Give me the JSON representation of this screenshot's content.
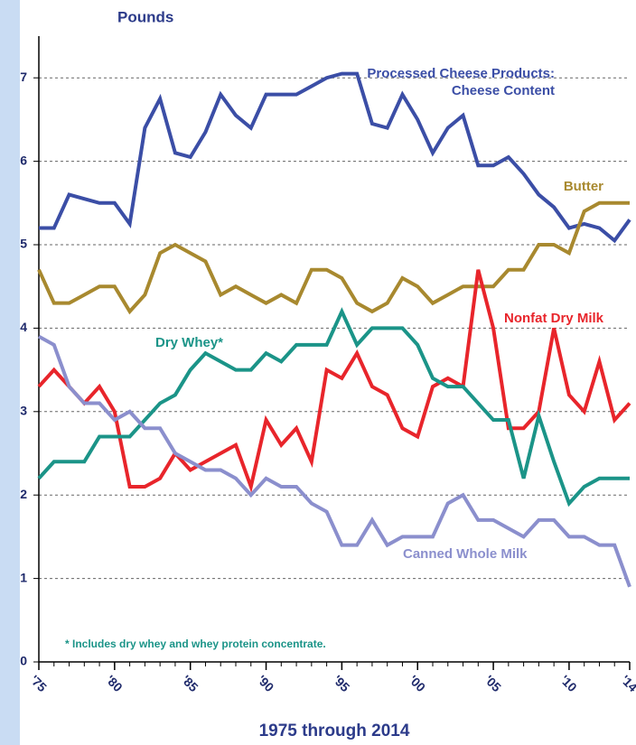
{
  "chart_data": {
    "type": "line",
    "y_label": "Pounds",
    "x_label": "1975 through 2014",
    "footnote": "* Includes dry whey and whey protein concentrate.",
    "x": [
      1975,
      1976,
      1977,
      1978,
      1979,
      1980,
      1981,
      1982,
      1983,
      1984,
      1985,
      1986,
      1987,
      1988,
      1989,
      1990,
      1991,
      1992,
      1993,
      1994,
      1995,
      1996,
      1997,
      1998,
      1999,
      2000,
      2001,
      2002,
      2003,
      2004,
      2005,
      2006,
      2007,
      2008,
      2009,
      2010,
      2011,
      2012,
      2013,
      2014
    ],
    "xlim": [
      1975,
      2014
    ],
    "xticks": [
      {
        "value": 1975,
        "label": "'75"
      },
      {
        "value": 1980,
        "label": "'80"
      },
      {
        "value": 1985,
        "label": "'85"
      },
      {
        "value": 1990,
        "label": "'90"
      },
      {
        "value": 1995,
        "label": "'95"
      },
      {
        "value": 2000,
        "label": "'00"
      },
      {
        "value": 2005,
        "label": "'05"
      },
      {
        "value": 2010,
        "label": "'10"
      },
      {
        "value": 2014,
        "label": "'14"
      }
    ],
    "ylim": [
      0,
      7.5
    ],
    "yticks": [
      0,
      1,
      2,
      3,
      4,
      5,
      6,
      7
    ],
    "grid": true,
    "series": [
      {
        "name": "Processed Cheese Products: Cheese Content",
        "color": "#3b4ea6",
        "values": [
          5.2,
          5.2,
          5.6,
          5.55,
          5.5,
          5.5,
          5.25,
          6.4,
          6.75,
          6.1,
          6.05,
          6.35,
          6.8,
          6.55,
          6.4,
          6.8,
          6.8,
          6.8,
          6.9,
          7.0,
          7.05,
          7.05,
          6.45,
          6.4,
          6.8,
          6.5,
          6.1,
          6.4,
          6.55,
          5.95,
          5.95,
          6.05,
          5.85,
          5.6,
          5.45,
          5.2,
          5.25,
          5.2,
          5.05,
          5.3
        ]
      },
      {
        "name": "Butter",
        "color": "#a8892f",
        "values": [
          4.7,
          4.3,
          4.3,
          4.4,
          4.5,
          4.5,
          4.2,
          4.4,
          4.9,
          5.0,
          4.9,
          4.8,
          4.4,
          4.5,
          4.4,
          4.3,
          4.4,
          4.3,
          4.7,
          4.7,
          4.6,
          4.3,
          4.2,
          4.3,
          4.6,
          4.5,
          4.3,
          4.4,
          4.5,
          4.5,
          4.5,
          4.7,
          4.7,
          5.0,
          5.0,
          4.9,
          5.4,
          5.5,
          5.5,
          5.5
        ]
      },
      {
        "name": "Nonfat Dry Milk",
        "color": "#e8252b",
        "values": [
          3.3,
          3.5,
          3.3,
          3.1,
          3.3,
          3.0,
          2.1,
          2.1,
          2.2,
          2.5,
          2.3,
          2.4,
          2.5,
          2.6,
          2.1,
          2.9,
          2.6,
          2.8,
          2.4,
          3.5,
          3.4,
          3.7,
          3.3,
          3.2,
          2.8,
          2.7,
          3.3,
          3.4,
          3.3,
          4.7,
          4.0,
          2.8,
          2.8,
          3.0,
          4.0,
          3.2,
          3.0,
          3.6,
          2.9,
          3.1
        ]
      },
      {
        "name": "Dry Whey*",
        "color": "#1b9488",
        "values": [
          2.2,
          2.4,
          2.4,
          2.4,
          2.7,
          2.7,
          2.7,
          2.9,
          3.1,
          3.2,
          3.5,
          3.7,
          3.6,
          3.5,
          3.5,
          3.7,
          3.6,
          3.8,
          3.8,
          3.8,
          4.2,
          3.8,
          4.0,
          4.0,
          4.0,
          3.8,
          3.4,
          3.3,
          3.3,
          3.1,
          2.9,
          2.9,
          2.2,
          2.95,
          2.4,
          1.9,
          2.1,
          2.2,
          2.2,
          2.2
        ]
      },
      {
        "name": "Canned Whole Milk",
        "color": "#8b8fcd",
        "values": [
          3.9,
          3.8,
          3.3,
          3.1,
          3.1,
          2.9,
          3.0,
          2.8,
          2.8,
          2.5,
          2.4,
          2.3,
          2.3,
          2.2,
          2.0,
          2.2,
          2.1,
          2.1,
          1.9,
          1.8,
          1.4,
          1.4,
          1.7,
          1.4,
          1.5,
          1.5,
          1.5,
          1.9,
          2.0,
          1.7,
          1.7,
          1.6,
          1.5,
          1.7,
          1.7,
          1.5,
          1.5,
          1.4,
          1.4,
          0.9
        ]
      }
    ]
  }
}
